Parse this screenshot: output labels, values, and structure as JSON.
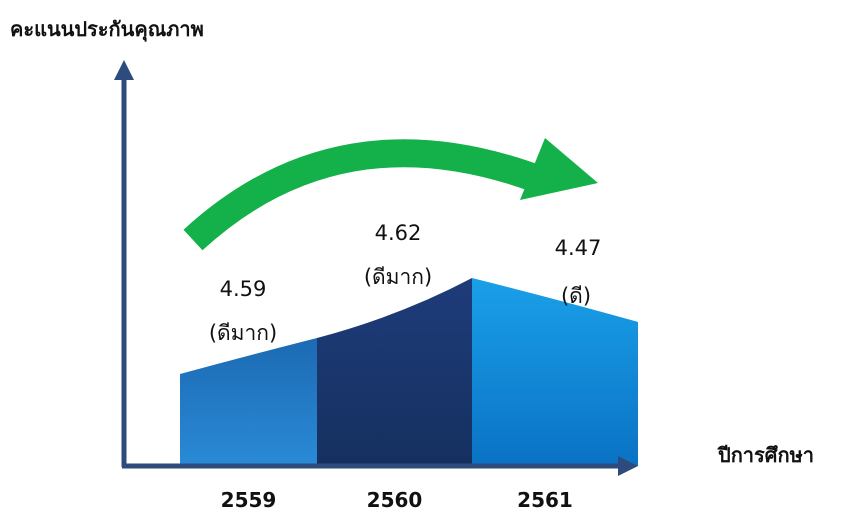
{
  "chart_data": {
    "type": "area",
    "ylabel": "คะแนนประกันคุณภาพ",
    "xlabel": "ปีการศึกษา",
    "categories": [
      "2559",
      "2560",
      "2561"
    ],
    "values": [
      4.59,
      4.62,
      4.47
    ],
    "value_labels": [
      "4.59",
      "4.62",
      "4.47"
    ],
    "level_labels": [
      "(ดีมาก)",
      "(ดีมาก)",
      "(ดี)"
    ],
    "colors": {
      "axis": "#2e4b7d",
      "arrow": "#14b04a",
      "seg_1": "#1c6db8",
      "seg_2": "#1e3f80",
      "seg_3": "#1798e2"
    }
  }
}
